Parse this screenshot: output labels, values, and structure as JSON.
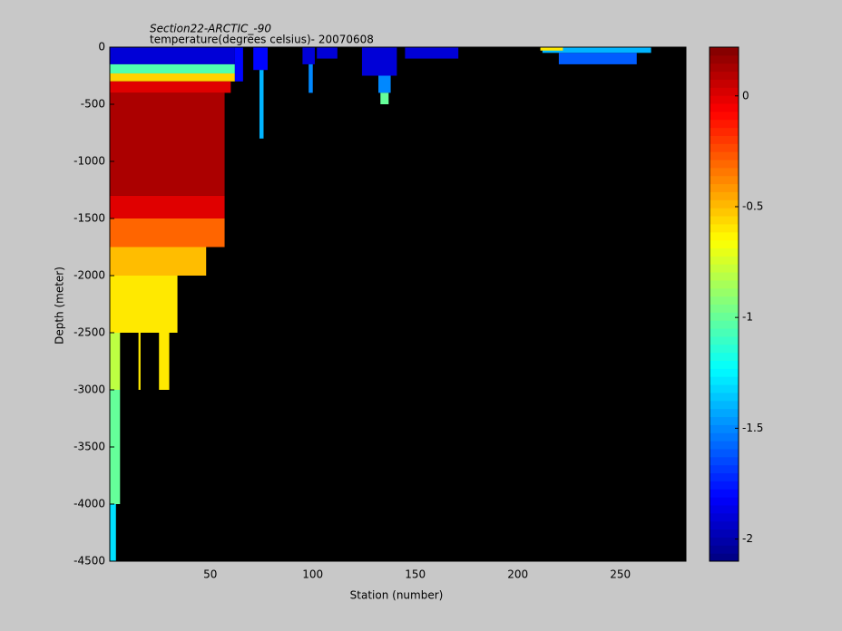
{
  "chart_data": {
    "type": "heatmap",
    "title": "Section22-ARCTIC_-90",
    "subtitle": "temperature(degrees celsius)- 20070608",
    "x_label": "Station (number)",
    "y_label": "Depth (meter)",
    "xlim": [
      1,
      282
    ],
    "xticks": [
      50,
      100,
      150,
      200,
      250
    ],
    "ylim": [
      -4500,
      0
    ],
    "yticks": [
      0,
      -500,
      -1000,
      -1500,
      -2000,
      -2500,
      -3000,
      -3500,
      -4000,
      -4500
    ],
    "clim": [
      -2.1,
      0.22
    ],
    "cticks": [
      0,
      -0.5,
      -1,
      -1.5,
      -2
    ],
    "colormap": "jet",
    "background": "#000000",
    "cells": [
      [
        1,
        62,
        0,
        -150,
        -1.9
      ],
      [
        1,
        62,
        -150,
        -230,
        -1.05
      ],
      [
        1,
        62,
        -230,
        -300,
        -0.55
      ],
      [
        1,
        60,
        -300,
        -400,
        0.0
      ],
      [
        1,
        57,
        -400,
        -1300,
        0.12
      ],
      [
        1,
        57,
        -1300,
        -1500,
        0.0
      ],
      [
        1,
        57,
        -1500,
        -1750,
        -0.3
      ],
      [
        1,
        48,
        -1750,
        -2000,
        -0.5
      ],
      [
        1,
        34,
        -2000,
        -2500,
        -0.6
      ],
      [
        1,
        6,
        -2500,
        -3000,
        -0.8
      ],
      [
        15,
        16,
        -2500,
        -3000,
        -0.6
      ],
      [
        25,
        30,
        -2500,
        -3000,
        -0.6
      ],
      [
        1,
        6,
        -3000,
        -4000,
        -1.0
      ],
      [
        1,
        4,
        -4000,
        -4500,
        -1.3
      ],
      [
        62,
        66,
        0,
        -300,
        -1.8
      ],
      [
        71,
        78,
        0,
        -200,
        -1.8
      ],
      [
        74,
        76,
        -200,
        -800,
        -1.4
      ],
      [
        95,
        101,
        0,
        -150,
        -1.9
      ],
      [
        98,
        100,
        -150,
        -400,
        -1.5
      ],
      [
        102,
        112,
        0,
        -100,
        -1.9
      ],
      [
        124,
        141,
        0,
        -250,
        -1.9
      ],
      [
        132,
        138,
        -250,
        -400,
        -1.5
      ],
      [
        133,
        137,
        -400,
        -500,
        -1.0
      ],
      [
        145,
        171,
        0,
        -100,
        -1.9
      ],
      [
        212,
        265,
        0,
        -50,
        -1.4
      ],
      [
        220,
        258,
        -50,
        -150,
        -1.6
      ],
      [
        211,
        222,
        0,
        -30,
        -0.6
      ]
    ]
  }
}
